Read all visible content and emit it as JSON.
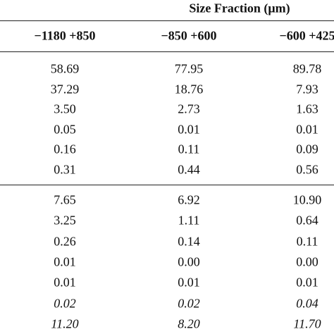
{
  "header": {
    "title": "Size Fraction (μm)"
  },
  "table": {
    "columns": [
      "−1180 +850",
      "−850 +600",
      "−600 +425"
    ],
    "blocks": [
      {
        "rows": [
          [
            "58.69",
            "77.95",
            "89.78"
          ],
          [
            "37.29",
            "18.76",
            "7.93"
          ],
          [
            "3.50",
            "2.73",
            "1.63"
          ],
          [
            "0.05",
            "0.01",
            "0.01"
          ],
          [
            "0.16",
            "0.11",
            "0.09"
          ],
          [
            "0.31",
            "0.44",
            "0.56"
          ]
        ]
      },
      {
        "rows": [
          [
            "7.65",
            "6.92",
            "10.90"
          ],
          [
            "3.25",
            "1.11",
            "0.64"
          ],
          [
            "0.26",
            "0.14",
            "0.11"
          ],
          [
            "0.01",
            "0.00",
            "0.00"
          ],
          [
            "0.01",
            "0.01",
            "0.01"
          ],
          [
            "0.02",
            "0.02",
            "0.04"
          ],
          [
            "11.20",
            "8.20",
            "11.70"
          ]
        ]
      }
    ]
  }
}
